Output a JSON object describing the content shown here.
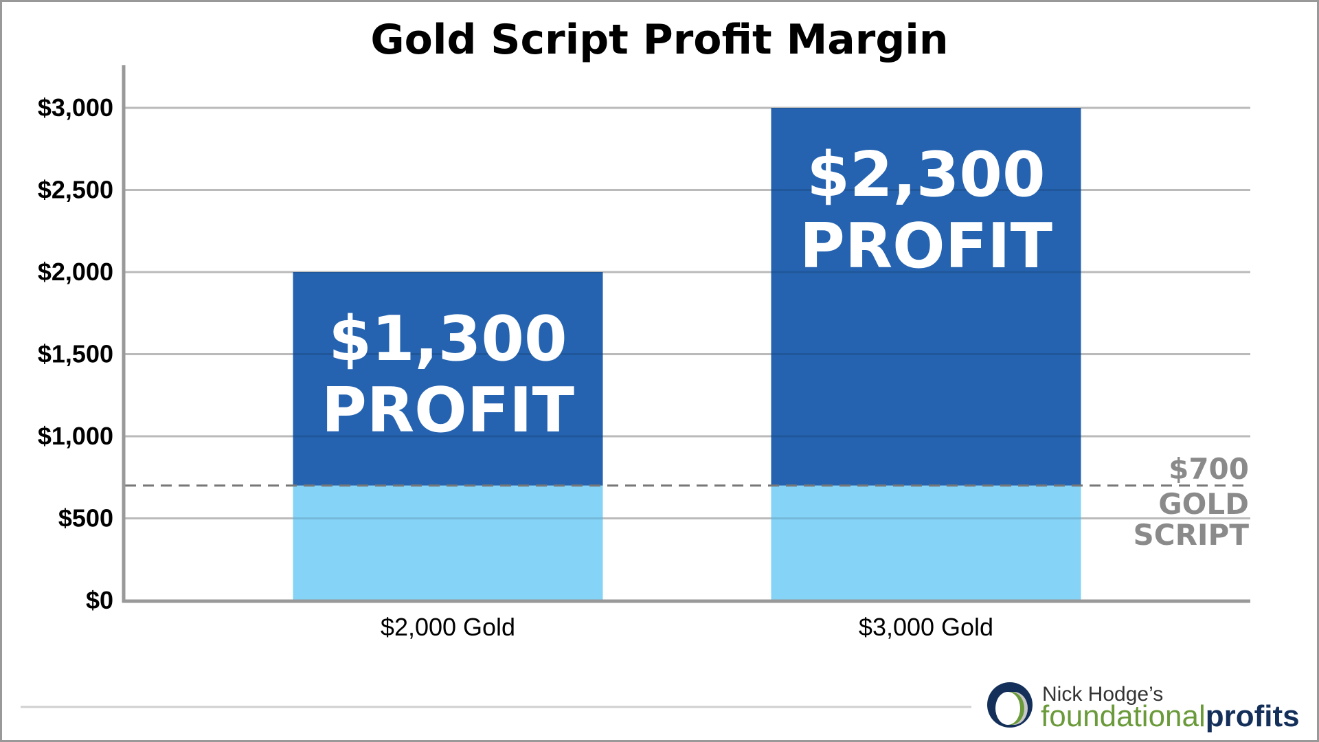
{
  "chart_data": {
    "type": "bar",
    "stacked": true,
    "title": "Gold Script Profit Margin",
    "xlabel": "",
    "ylabel": "",
    "ylim": [
      0,
      3000
    ],
    "yticks": [
      0,
      500,
      1000,
      1500,
      2000,
      2500,
      3000
    ],
    "ytick_labels": [
      "$0",
      "$500",
      "$1,000",
      "$1,500",
      "$2,000",
      "$2,500",
      "$3,000"
    ],
    "grid": true,
    "categories": [
      "$2,000 Gold",
      "$3,000 Gold"
    ],
    "series": [
      {
        "name": "Gold Script",
        "values": [
          700,
          700
        ],
        "color": "#85d3f7"
      },
      {
        "name": "Profit",
        "values": [
          1300,
          2300
        ],
        "color": "#2563b0"
      }
    ],
    "bar_labels": [
      {
        "amount": "$1,300",
        "word": "PROFIT"
      },
      {
        "amount": "$2,300",
        "word": "PROFIT"
      }
    ],
    "reference_line": {
      "value": 700,
      "label_lines": [
        "$700",
        "GOLD",
        "SCRIPT"
      ],
      "style": "dashed",
      "color": "#777777"
    }
  },
  "branding": {
    "line1": "Nick Hodge’s",
    "line2a": "foundational",
    "line2b": "profits"
  }
}
